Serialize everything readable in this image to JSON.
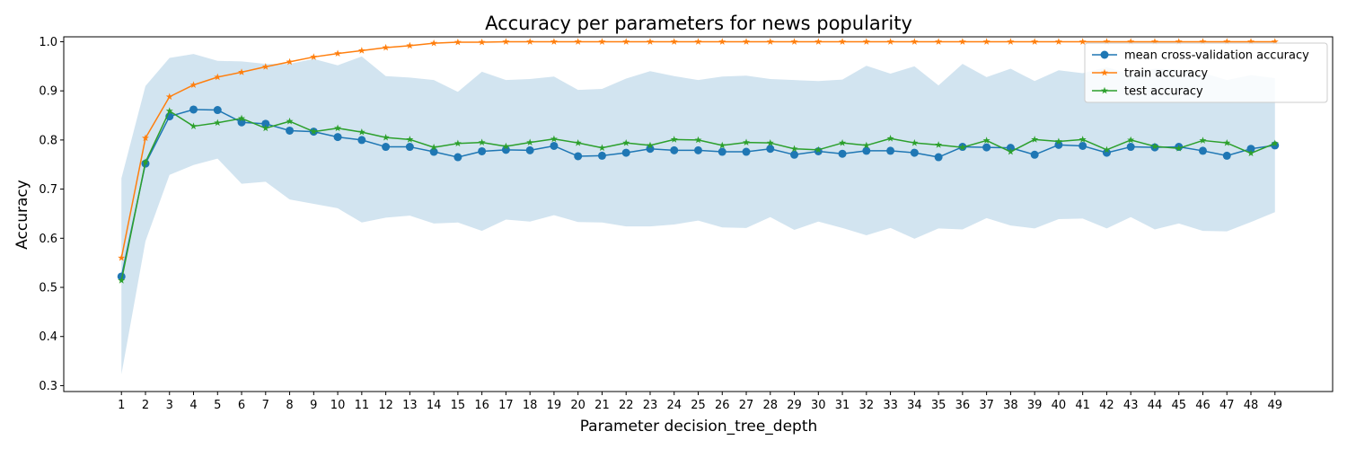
{
  "chart_data": {
    "type": "line",
    "title": "Accuracy per parameters for news popularity",
    "xlabel": "Parameter decision_tree_depth",
    "ylabel": "Accuracy",
    "x": [
      1,
      2,
      3,
      4,
      5,
      6,
      7,
      8,
      9,
      10,
      11,
      12,
      13,
      14,
      15,
      16,
      17,
      18,
      19,
      20,
      21,
      22,
      23,
      24,
      25,
      26,
      27,
      28,
      29,
      30,
      31,
      32,
      33,
      34,
      35,
      36,
      37,
      38,
      39,
      40,
      41,
      42,
      43,
      44,
      45,
      46,
      47,
      48,
      49
    ],
    "xlim": [
      -1.4,
      51.4
    ],
    "ylim": [
      0.288,
      1.01
    ],
    "yticks": [
      0.3,
      0.4,
      0.5,
      0.6,
      0.7,
      0.8,
      0.9,
      1.0
    ],
    "ytick_labels": [
      "0.3",
      "0.4",
      "0.5",
      "0.6",
      "0.7",
      "0.8",
      "0.9",
      "1.0"
    ],
    "grid": false,
    "legend_position": "top-right",
    "series": [
      {
        "name": "mean cross-validation accuracy",
        "color": "#1f77b4",
        "marker": "circle",
        "values": [
          0.522,
          0.752,
          0.848,
          0.862,
          0.861,
          0.836,
          0.833,
          0.819,
          0.817,
          0.806,
          0.8,
          0.786,
          0.786,
          0.776,
          0.765,
          0.777,
          0.78,
          0.779,
          0.788,
          0.767,
          0.768,
          0.774,
          0.782,
          0.779,
          0.779,
          0.776,
          0.776,
          0.782,
          0.77,
          0.777,
          0.772,
          0.778,
          0.778,
          0.774,
          0.765,
          0.786,
          0.785,
          0.784,
          0.77,
          0.79,
          0.788,
          0.774,
          0.786,
          0.785,
          0.786,
          0.778,
          0.768,
          0.782,
          0.789
        ],
        "band_upper": [
          0.722,
          0.91,
          0.967,
          0.975,
          0.961,
          0.96,
          0.955,
          0.955,
          0.965,
          0.952,
          0.97,
          0.93,
          0.927,
          0.922,
          0.898,
          0.939,
          0.922,
          0.924,
          0.929,
          0.902,
          0.904,
          0.925,
          0.94,
          0.93,
          0.922,
          0.929,
          0.931,
          0.924,
          0.922,
          0.92,
          0.923,
          0.951,
          0.935,
          0.95,
          0.911,
          0.955,
          0.928,
          0.945,
          0.92,
          0.942,
          0.936,
          0.948,
          0.934,
          0.945,
          0.943,
          0.937,
          0.922,
          0.932,
          0.926
        ],
        "band_lower": [
          0.323,
          0.594,
          0.729,
          0.749,
          0.762,
          0.711,
          0.715,
          0.679,
          0.67,
          0.661,
          0.632,
          0.642,
          0.646,
          0.63,
          0.632,
          0.615,
          0.638,
          0.634,
          0.647,
          0.633,
          0.632,
          0.624,
          0.624,
          0.628,
          0.636,
          0.622,
          0.621,
          0.643,
          0.617,
          0.634,
          0.621,
          0.606,
          0.621,
          0.599,
          0.62,
          0.618,
          0.641,
          0.626,
          0.62,
          0.639,
          0.64,
          0.62,
          0.643,
          0.618,
          0.63,
          0.615,
          0.614,
          0.633,
          0.653
        ]
      },
      {
        "name": "train accuracy",
        "color": "#ff7f0e",
        "marker": "star",
        "values": [
          0.56,
          0.804,
          0.888,
          0.912,
          0.928,
          0.938,
          0.949,
          0.959,
          0.969,
          0.976,
          0.982,
          0.988,
          0.992,
          0.997,
          0.999,
          0.999,
          1.0,
          1.0,
          1.0,
          1.0,
          1.0,
          1.0,
          1.0,
          1.0,
          1.0,
          1.0,
          1.0,
          1.0,
          1.0,
          1.0,
          1.0,
          1.0,
          1.0,
          1.0,
          1.0,
          1.0,
          1.0,
          1.0,
          1.0,
          1.0,
          1.0,
          1.0,
          1.0,
          1.0,
          1.0,
          1.0,
          1.0,
          1.0,
          1.0
        ]
      },
      {
        "name": "test accuracy",
        "color": "#2ca02c",
        "marker": "star",
        "values": [
          0.514,
          0.755,
          0.859,
          0.828,
          0.835,
          0.844,
          0.824,
          0.838,
          0.817,
          0.824,
          0.816,
          0.805,
          0.801,
          0.785,
          0.793,
          0.795,
          0.787,
          0.795,
          0.802,
          0.794,
          0.784,
          0.794,
          0.789,
          0.801,
          0.8,
          0.789,
          0.795,
          0.794,
          0.782,
          0.78,
          0.794,
          0.789,
          0.803,
          0.794,
          0.79,
          0.785,
          0.799,
          0.776,
          0.801,
          0.797,
          0.801,
          0.78,
          0.8,
          0.787,
          0.783,
          0.799,
          0.794,
          0.773,
          0.793
        ]
      }
    ],
    "band_color": "#1f77b4"
  }
}
